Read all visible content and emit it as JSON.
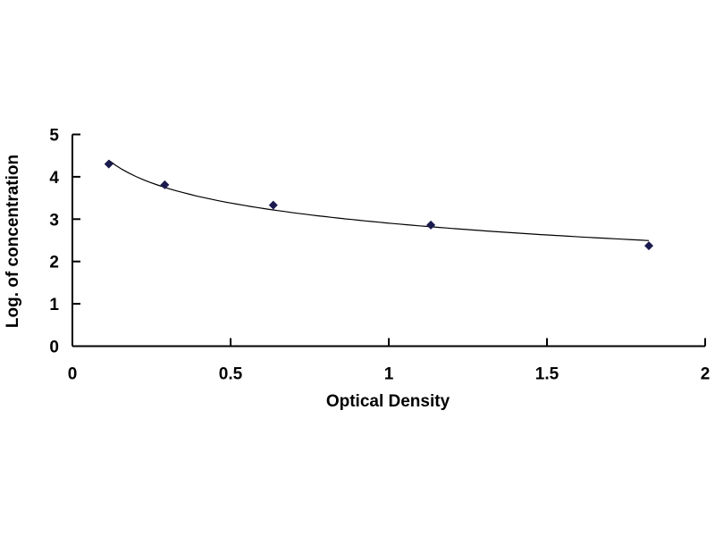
{
  "chart_data": {
    "type": "scatter",
    "title": "",
    "xlabel": "Optical Density",
    "ylabel": "Log. of concentration",
    "xlim": [
      0,
      2
    ],
    "ylim": [
      0,
      5
    ],
    "x_ticks": [
      "0",
      "0.5",
      "1",
      "1.5",
      "2"
    ],
    "y_ticks": [
      "0",
      "1",
      "2",
      "3",
      "4",
      "5"
    ],
    "grid": false,
    "legend": "none",
    "trendline": true,
    "marker": "diamond",
    "color": "#1a1a4e",
    "series": [
      {
        "x": [
          0.115,
          0.292,
          0.635,
          1.133,
          1.822
        ],
        "y": [
          4.3,
          3.81,
          3.33,
          2.86,
          2.37
        ]
      }
    ]
  }
}
